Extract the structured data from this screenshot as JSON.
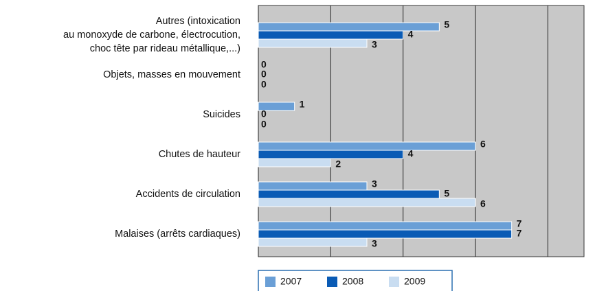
{
  "chart_data": {
    "type": "barh",
    "categories": [
      "Autres (intoxication\nau monoxyde de carbone, électrocution,\nchoc tête par rideau métallique,...)",
      "Objets, masses en mouvement",
      "Suicides",
      "Chutes de hauteur",
      "Accidents de circulation",
      "Malaises (arrêts cardiaques)"
    ],
    "series": [
      {
        "name": "2007",
        "color": "#6a9fd6",
        "values": [
          5,
          0,
          1,
          6,
          3,
          7
        ]
      },
      {
        "name": "2008",
        "color": "#0a5bb5",
        "values": [
          4,
          0,
          0,
          4,
          5,
          7
        ]
      },
      {
        "name": "2009",
        "color": "#c9ddf1",
        "values": [
          3,
          0,
          0,
          2,
          6,
          3
        ]
      }
    ],
    "xlim": [
      0,
      9
    ],
    "xticks": [
      0,
      2,
      4,
      6,
      8
    ],
    "grid": true,
    "legend": "bottom"
  }
}
